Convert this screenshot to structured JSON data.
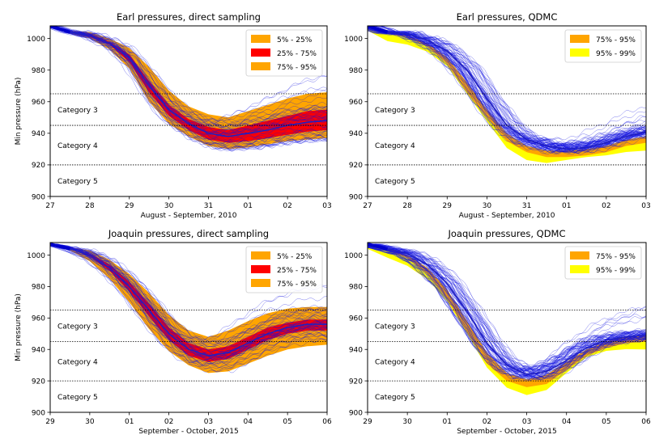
{
  "chart_data": [
    {
      "type": "line",
      "title": "Earl pressures, direct sampling",
      "xlabel": "August - September, 2010",
      "ylabel": "Min pressure (hPa)",
      "x_ticks": [
        "27",
        "28",
        "29",
        "30",
        "31",
        "01",
        "02",
        "03"
      ],
      "y_ticks": [
        900,
        920,
        940,
        960,
        980,
        1000
      ],
      "ylim": [
        900,
        1008
      ],
      "category_lines": [
        965,
        945,
        920
      ],
      "category_labels": [
        {
          "text": "Category 3",
          "y": 955
        },
        {
          "text": "Category 4",
          "y": 932.5
        },
        {
          "text": "Category 5",
          "y": 910
        }
      ],
      "legend": {
        "position": "top-right",
        "entries": [
          {
            "label": "5% - 25%",
            "color": "#ffa500"
          },
          {
            "label": "25% - 75%",
            "color": "#ff0000"
          },
          {
            "label": "75% - 95%",
            "color": "#ffa500"
          }
        ]
      },
      "x": [
        0,
        0.5,
        1,
        1.5,
        2,
        2.5,
        3,
        3.5,
        4,
        4.5,
        5,
        5.5,
        6,
        6.5,
        7
      ],
      "median": [
        1008,
        1004,
        1002,
        997,
        988,
        970,
        955,
        946,
        940,
        938,
        940,
        942,
        945,
        947,
        948
      ],
      "band_5_95": {
        "upper": [
          1008,
          1005,
          1004,
          1000,
          994,
          982,
          967,
          957,
          952,
          950,
          954,
          958,
          962,
          965,
          966
        ],
        "lower": [
          1008,
          1003,
          1000,
          993,
          981,
          960,
          946,
          938,
          932,
          930,
          931,
          933,
          935,
          936,
          937
        ]
      },
      "band_25_75": {
        "upper": [
          1008,
          1004,
          1003,
          998,
          990,
          973,
          958,
          949,
          944,
          942,
          945,
          948,
          951,
          954,
          955
        ],
        "lower": [
          1008,
          1004,
          1001,
          996,
          985,
          966,
          951,
          942,
          936,
          934,
          935,
          937,
          939,
          941,
          942
        ]
      }
    },
    {
      "type": "line",
      "title": "Earl pressures, QDMC",
      "xlabel": "August - September, 2010",
      "ylabel": "",
      "x_ticks": [
        "27",
        "28",
        "29",
        "30",
        "31",
        "01",
        "02",
        "03"
      ],
      "y_ticks": [
        900,
        920,
        940,
        960,
        980,
        1000
      ],
      "ylim": [
        900,
        1008
      ],
      "category_lines": [
        965,
        945,
        920
      ],
      "category_labels": [
        {
          "text": "Category 3",
          "y": 955
        },
        {
          "text": "Category 4",
          "y": 932.5
        },
        {
          "text": "Category 5",
          "y": 910
        }
      ],
      "legend": {
        "position": "top-right",
        "entries": [
          {
            "label": "75% - 95%",
            "color": "#ffa500"
          },
          {
            "label": "95% - 99%",
            "color": "#ffff00"
          }
        ]
      },
      "x": [
        0,
        0.5,
        1,
        1.5,
        2,
        2.5,
        3,
        3.5,
        4,
        4.5,
        5,
        5.5,
        6,
        6.5,
        7
      ],
      "median": [
        1008,
        1004,
        1003,
        999,
        992,
        980,
        962,
        945,
        936,
        932,
        930,
        931,
        934,
        938,
        941
      ],
      "band_5_95": {
        "upper": [
          1008,
          1004,
          1002,
          997,
          988,
          972,
          955,
          940,
          932,
          929,
          929,
          930,
          932,
          936,
          938
        ],
        "lower": [
          1008,
          1003,
          1001,
          995,
          984,
          966,
          950,
          935,
          928,
          925,
          925,
          926,
          928,
          932,
          934
        ]
      },
      "band_25_75": {
        "upper": [
          1008,
          1004,
          1002,
          997,
          988,
          972,
          955,
          940,
          932,
          929,
          929,
          930,
          932,
          936,
          938
        ],
        "lower": [
          1008,
          1003,
          1001,
          995,
          984,
          966,
          950,
          935,
          928,
          925,
          925,
          926,
          928,
          932,
          934
        ]
      }
    },
    {
      "type": "line",
      "title": "Joaquin pressures, direct sampling",
      "xlabel": "September - October, 2015",
      "ylabel": "Min pressure (hPa)",
      "x_ticks": [
        "29",
        "30",
        "01",
        "02",
        "03",
        "04",
        "05",
        "06"
      ],
      "y_ticks": [
        900,
        920,
        940,
        960,
        980,
        1000
      ],
      "ylim": [
        900,
        1008
      ],
      "category_lines": [
        965,
        945,
        920
      ],
      "category_labels": [
        {
          "text": "Category 3",
          "y": 955
        },
        {
          "text": "Category 4",
          "y": 932.5
        },
        {
          "text": "Category 5",
          "y": 910
        }
      ],
      "legend": {
        "position": "top-right",
        "entries": [
          {
            "label": "5% - 25%",
            "color": "#ffa500"
          },
          {
            "label": "25% - 75%",
            "color": "#ff0000"
          },
          {
            "label": "75% - 95%",
            "color": "#ffa500"
          }
        ]
      },
      "x": [
        0,
        0.5,
        1,
        1.5,
        2,
        2.5,
        3,
        3.5,
        4,
        4.5,
        5,
        5.5,
        6,
        6.5,
        7
      ],
      "median": [
        1007,
        1004,
        1000,
        992,
        980,
        965,
        950,
        940,
        936,
        938,
        944,
        950,
        954,
        956,
        956
      ],
      "band_5_95": {
        "upper": [
          1007,
          1005,
          1003,
          997,
          988,
          976,
          962,
          952,
          948,
          952,
          958,
          963,
          966,
          967,
          967
        ],
        "lower": [
          1007,
          1003,
          996,
          985,
          970,
          953,
          939,
          930,
          925,
          926,
          931,
          936,
          940,
          942,
          943
        ]
      },
      "band_25_75": {
        "upper": [
          1007,
          1004,
          1001,
          994,
          983,
          969,
          954,
          944,
          940,
          942,
          948,
          954,
          957,
          959,
          959
        ],
        "lower": [
          1007,
          1004,
          999,
          990,
          977,
          961,
          946,
          936,
          932,
          934,
          940,
          946,
          950,
          952,
          952
        ]
      }
    },
    {
      "type": "line",
      "title": "Joaquin pressures, QDMC",
      "xlabel": "September - October, 2015",
      "ylabel": "",
      "x_ticks": [
        "29",
        "30",
        "01",
        "02",
        "03",
        "04",
        "05",
        "06"
      ],
      "y_ticks": [
        900,
        920,
        940,
        960,
        980,
        1000
      ],
      "ylim": [
        900,
        1008
      ],
      "category_lines": [
        965,
        945,
        920
      ],
      "category_labels": [
        {
          "text": "Category 3",
          "y": 955
        },
        {
          "text": "Category 4",
          "y": 932.5
        },
        {
          "text": "Category 5",
          "y": 910
        }
      ],
      "legend": {
        "position": "top-right",
        "entries": [
          {
            "label": "75% - 95%",
            "color": "#ffa500"
          },
          {
            "label": "95% - 99%",
            "color": "#ffff00"
          }
        ]
      },
      "x": [
        0,
        0.5,
        1,
        1.5,
        2,
        2.5,
        3,
        3.5,
        4,
        4.5,
        5,
        5.5,
        6,
        6.5,
        7
      ],
      "median": [
        1007,
        1004,
        1001,
        994,
        982,
        964,
        944,
        930,
        924,
        926,
        933,
        941,
        946,
        948,
        949
      ],
      "band_5_95": {
        "upper": [
          1007,
          1004,
          1000,
          992,
          978,
          958,
          938,
          925,
          921,
          924,
          932,
          940,
          945,
          948,
          949
        ],
        "lower": [
          1007,
          1003,
          998,
          988,
          972,
          951,
          931,
          920,
          916,
          918,
          927,
          936,
          941,
          944,
          945
        ]
      },
      "band_25_75": {
        "upper": [
          1007,
          1004,
          1000,
          992,
          978,
          958,
          938,
          925,
          921,
          924,
          932,
          940,
          945,
          948,
          949
        ],
        "lower": [
          1007,
          1003,
          998,
          988,
          972,
          951,
          931,
          920,
          916,
          918,
          927,
          936,
          941,
          944,
          945
        ]
      }
    }
  ]
}
